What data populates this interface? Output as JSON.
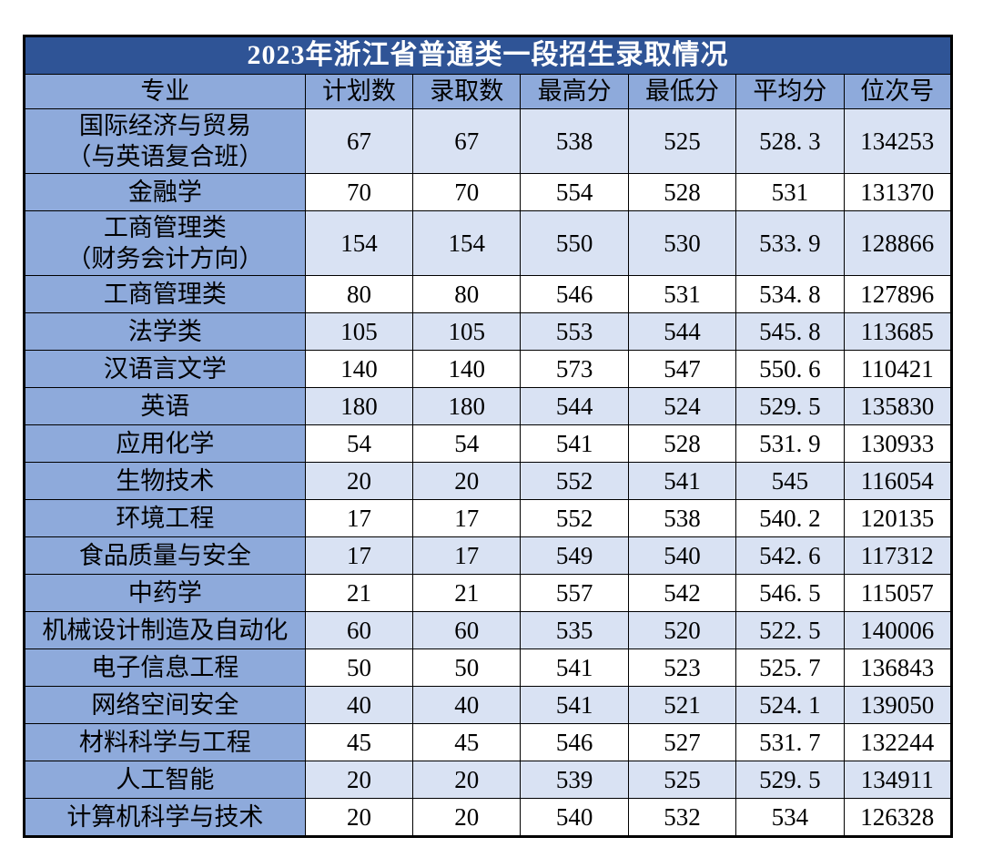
{
  "table": {
    "title": "2023年浙江省普通类一段招生录取情况",
    "columns": [
      "专业",
      "计划数",
      "录取数",
      "最高分",
      "最低分",
      "平均分",
      "位次号"
    ],
    "colors": {
      "title_bg": "#2F5496",
      "title_text": "#FFFFFF",
      "header_bg": "#8EAADB",
      "major_column_bg": "#8EAADB",
      "alt_row_bg": "#D9E2F3",
      "plain_row_bg": "#FFFFFF",
      "border": "#000000",
      "text": "#000000"
    },
    "rows": [
      {
        "major": "国际经济与贸易\n（与英语复合班）",
        "plan": "67",
        "admitted": "67",
        "max": "538",
        "min": "525",
        "avg": "528. 3",
        "rank": "134253"
      },
      {
        "major": "金融学",
        "plan": "70",
        "admitted": "70",
        "max": "554",
        "min": "528",
        "avg": "531",
        "rank": "131370"
      },
      {
        "major": "工商管理类\n（财务会计方向）",
        "plan": "154",
        "admitted": "154",
        "max": "550",
        "min": "530",
        "avg": "533. 9",
        "rank": "128866"
      },
      {
        "major": "工商管理类",
        "plan": "80",
        "admitted": "80",
        "max": "546",
        "min": "531",
        "avg": "534. 8",
        "rank": "127896"
      },
      {
        "major": "法学类",
        "plan": "105",
        "admitted": "105",
        "max": "553",
        "min": "544",
        "avg": "545. 8",
        "rank": "113685"
      },
      {
        "major": "汉语言文学",
        "plan": "140",
        "admitted": "140",
        "max": "573",
        "min": "547",
        "avg": "550. 6",
        "rank": "110421"
      },
      {
        "major": "英语",
        "plan": "180",
        "admitted": "180",
        "max": "544",
        "min": "524",
        "avg": "529. 5",
        "rank": "135830"
      },
      {
        "major": "应用化学",
        "plan": "54",
        "admitted": "54",
        "max": "541",
        "min": "528",
        "avg": "531. 9",
        "rank": "130933"
      },
      {
        "major": "生物技术",
        "plan": "20",
        "admitted": "20",
        "max": "552",
        "min": "541",
        "avg": "545",
        "rank": "116054"
      },
      {
        "major": "环境工程",
        "plan": "17",
        "admitted": "17",
        "max": "552",
        "min": "538",
        "avg": "540. 2",
        "rank": "120135"
      },
      {
        "major": "食品质量与安全",
        "plan": "17",
        "admitted": "17",
        "max": "549",
        "min": "540",
        "avg": "542. 6",
        "rank": "117312"
      },
      {
        "major": "中药学",
        "plan": "21",
        "admitted": "21",
        "max": "557",
        "min": "542",
        "avg": "546. 5",
        "rank": "115057"
      },
      {
        "major": "机械设计制造及自动化",
        "plan": "60",
        "admitted": "60",
        "max": "535",
        "min": "520",
        "avg": "522. 5",
        "rank": "140006"
      },
      {
        "major": "电子信息工程",
        "plan": "50",
        "admitted": "50",
        "max": "541",
        "min": "523",
        "avg": "525. 7",
        "rank": "136843"
      },
      {
        "major": "网络空间安全",
        "plan": "40",
        "admitted": "40",
        "max": "541",
        "min": "521",
        "avg": "524. 1",
        "rank": "139050"
      },
      {
        "major": "材料科学与工程",
        "plan": "45",
        "admitted": "45",
        "max": "546",
        "min": "527",
        "avg": "531. 7",
        "rank": "132244"
      },
      {
        "major": "人工智能",
        "plan": "20",
        "admitted": "20",
        "max": "539",
        "min": "525",
        "avg": "529. 5",
        "rank": "134911"
      },
      {
        "major": "计算机科学与技术",
        "plan": "20",
        "admitted": "20",
        "max": "540",
        "min": "532",
        "avg": "534",
        "rank": "126328"
      }
    ]
  }
}
